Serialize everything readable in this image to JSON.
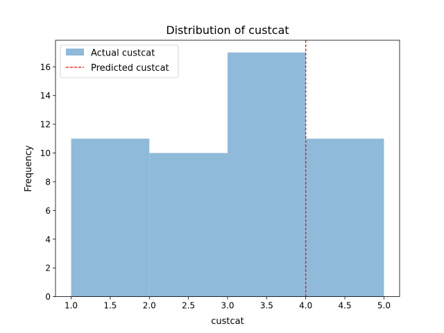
{
  "chart_data": {
    "type": "bar",
    "title": "Distribution of custcat",
    "xlabel": "custcat",
    "ylabel": "Frequency",
    "xlim": [
      0.8,
      5.2
    ],
    "ylim": [
      0,
      17.85
    ],
    "x_ticks": [
      "1.0",
      "1.5",
      "2.0",
      "2.5",
      "3.0",
      "3.5",
      "4.0",
      "4.5",
      "5.0"
    ],
    "y_ticks": [
      "0",
      "2",
      "4",
      "6",
      "8",
      "10",
      "12",
      "14",
      "16"
    ],
    "bins": [
      {
        "start": 1.0,
        "end": 2.0,
        "count": 11
      },
      {
        "start": 2.0,
        "end": 3.0,
        "count": 10
      },
      {
        "start": 3.0,
        "end": 4.0,
        "count": 17
      },
      {
        "start": 4.0,
        "end": 5.0,
        "count": 11
      }
    ],
    "predicted_value": 4.0,
    "legend": {
      "position": "upper-left",
      "entries": [
        "Actual custcat",
        "Predicted custcat"
      ]
    },
    "colors": {
      "bars": "#8fbad9",
      "predicted_line": "#ff0000"
    }
  }
}
